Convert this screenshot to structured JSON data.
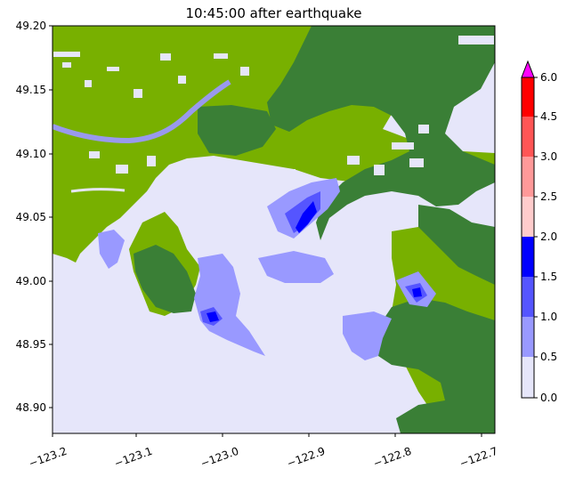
{
  "title": "10:45:00 after earthquake",
  "map": {
    "x_ticks": [
      "−123.2",
      "−123.1",
      "−123.0",
      "−122.9",
      "−122.8",
      "−122.7"
    ],
    "y_ticks": [
      "49.20",
      "49.15",
      "49.10",
      "49.05",
      "49.00",
      "48.95",
      "48.90"
    ],
    "x_range": [
      -123.2,
      -122.69
    ],
    "y_range": [
      48.88,
      49.2
    ],
    "colors": {
      "water": "#e6e6fa",
      "lowland": "#78b000",
      "upland": "#3a7f36"
    }
  },
  "colorbar": {
    "ticks": [
      "0.0",
      "0.5",
      "1.0",
      "1.5",
      "2.0",
      "2.5",
      "3.0",
      "4.5",
      "6.0"
    ],
    "levels": [
      0.0,
      0.5,
      1.0,
      1.5,
      2.0,
      2.5,
      3.0,
      4.5,
      6.0
    ],
    "colors": [
      "#e6e6fa",
      "#9999ff",
      "#5555ff",
      "#0000ff",
      "#ffcccc",
      "#ff9999",
      "#ff5555",
      "#ff0000"
    ],
    "extend_color": "#ff00ff"
  }
}
